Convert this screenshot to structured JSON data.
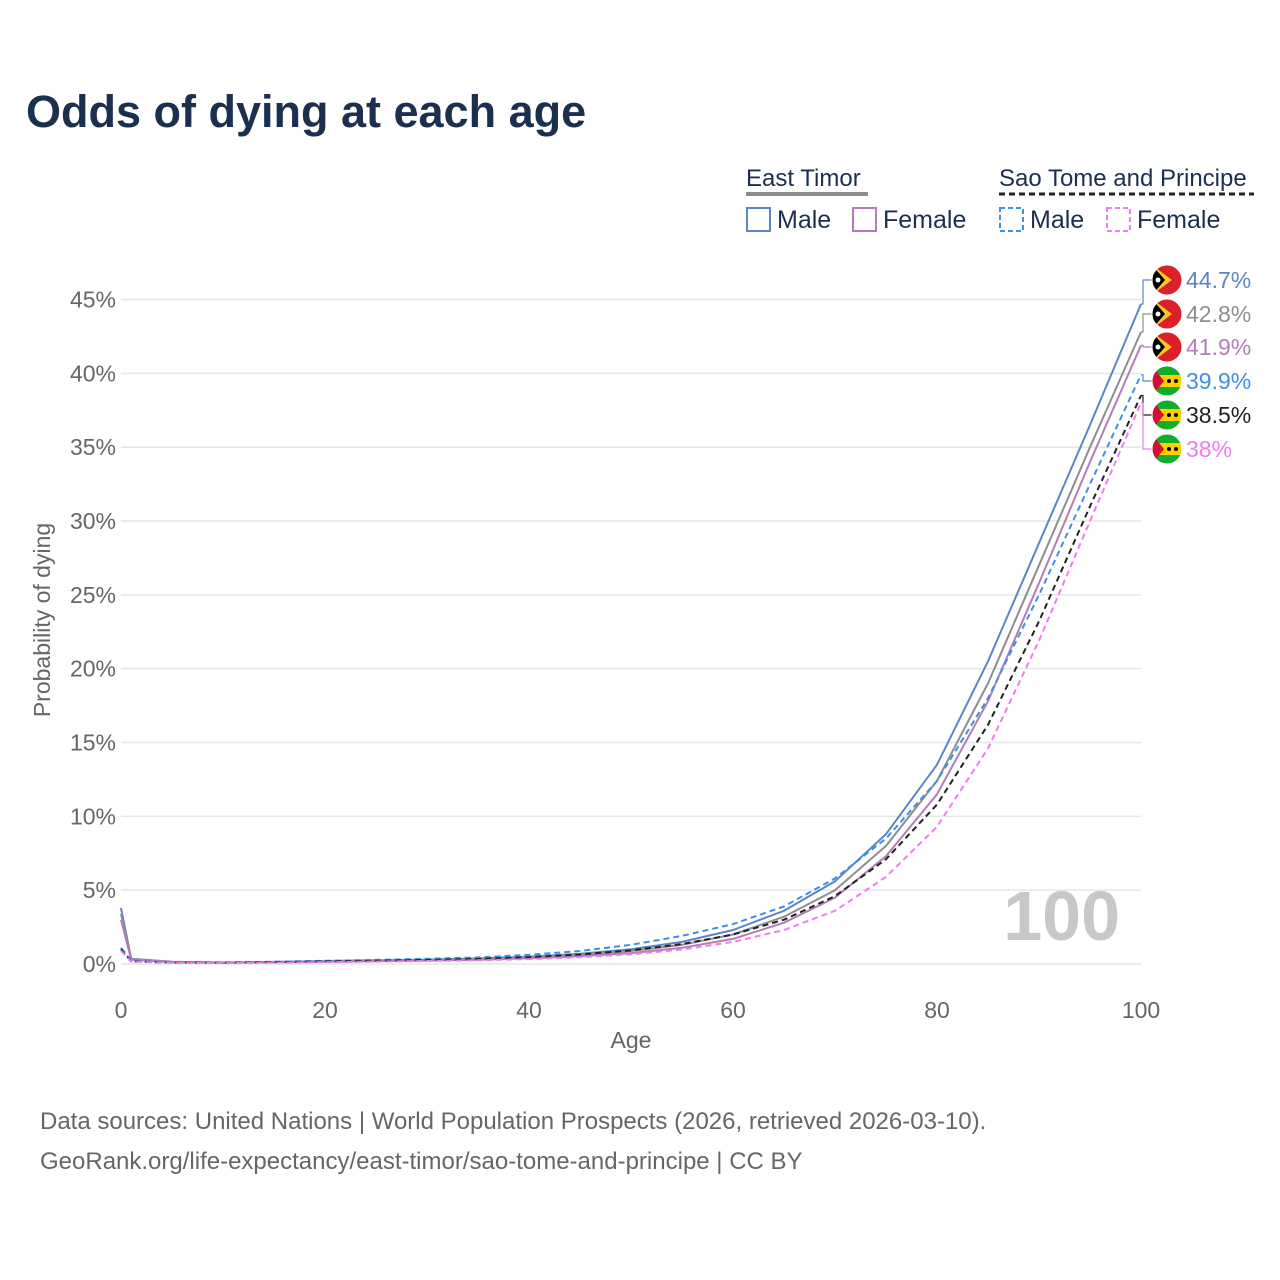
{
  "title": "Odds of dying at each age",
  "footer": {
    "line1": "Data sources: United Nations | World Population Prospects (2026, retrieved 2026-03-10).",
    "line2": "GeoRank.org/life-expectancy/east-timor/sao-tome-and-principe | CC BY"
  },
  "colors": {
    "east_timor_male": "#5b86c5",
    "east_timor_female": "#b47cb8",
    "east_timor_group": "#8e8e8e",
    "stp_male": "#3d8fe8",
    "stp_female": "#f07cef",
    "stp_group": "#222222"
  },
  "legend": {
    "groups": [
      {
        "label": "East Timor",
        "style": "solid",
        "entries": [
          "Male",
          "Female"
        ]
      },
      {
        "label": "Sao Tome and Principe",
        "style": "dashed",
        "entries": [
          "Male",
          "Female"
        ]
      }
    ]
  },
  "chart_data": {
    "type": "line",
    "title": "Odds of dying at each age",
    "xlabel": "Age",
    "ylabel": "Probability of dying",
    "xlim": [
      0,
      100
    ],
    "ylim": [
      0,
      47
    ],
    "xticks": [
      0,
      20,
      40,
      60,
      80,
      100
    ],
    "yticks": [
      0,
      5,
      10,
      15,
      20,
      25,
      30,
      35,
      40,
      45
    ],
    "ytick_suffix": "%",
    "grid": true,
    "year_label": "100",
    "x": [
      0,
      1,
      5,
      10,
      15,
      20,
      25,
      30,
      35,
      40,
      45,
      50,
      55,
      60,
      65,
      70,
      75,
      80,
      85,
      90,
      95,
      100
    ],
    "series": [
      {
        "name": "East Timor Male",
        "country": "East Timor",
        "sex": "Male",
        "style": "solid",
        "color_key": "east_timor_male",
        "values": [
          3.8,
          0.35,
          0.15,
          0.1,
          0.14,
          0.2,
          0.25,
          0.3,
          0.38,
          0.5,
          0.7,
          1.0,
          1.5,
          2.3,
          3.6,
          5.6,
          8.8,
          13.5,
          20.5,
          28.5,
          36.5,
          44.7
        ],
        "end_label": "44.7%"
      },
      {
        "name": "East Timor (both sexes)",
        "country": "East Timor",
        "sex": "Both",
        "style": "solid",
        "color_key": "east_timor_group",
        "values": [
          3.4,
          0.33,
          0.14,
          0.09,
          0.13,
          0.18,
          0.22,
          0.27,
          0.34,
          0.45,
          0.62,
          0.88,
          1.3,
          2.0,
          3.2,
          5.0,
          8.0,
          12.4,
          19.0,
          27.0,
          35.0,
          42.8
        ],
        "end_label": "42.8%"
      },
      {
        "name": "East Timor Female",
        "country": "East Timor",
        "sex": "Female",
        "style": "solid",
        "color_key": "east_timor_female",
        "values": [
          3.0,
          0.3,
          0.12,
          0.08,
          0.11,
          0.15,
          0.19,
          0.23,
          0.29,
          0.38,
          0.52,
          0.74,
          1.1,
          1.7,
          2.8,
          4.5,
          7.3,
          11.5,
          17.8,
          25.8,
          34.0,
          41.9
        ],
        "end_label": "41.9%"
      },
      {
        "name": "Sao Tome and Principe Male",
        "country": "Sao Tome and Principe",
        "sex": "Male",
        "style": "dashed",
        "color_key": "stp_male",
        "values": [
          1.1,
          0.2,
          0.1,
          0.1,
          0.15,
          0.22,
          0.28,
          0.35,
          0.45,
          0.62,
          0.88,
          1.3,
          1.9,
          2.7,
          3.9,
          5.8,
          8.5,
          12.4,
          18.0,
          25.0,
          32.5,
          39.9
        ],
        "end_label": "39.9%"
      },
      {
        "name": "Sao Tome and Principe (both sexes)",
        "country": "Sao Tome and Principe",
        "sex": "Both",
        "style": "dashed",
        "color_key": "stp_group",
        "values": [
          1.0,
          0.18,
          0.09,
          0.08,
          0.12,
          0.17,
          0.22,
          0.27,
          0.34,
          0.46,
          0.64,
          0.92,
          1.35,
          2.0,
          3.0,
          4.6,
          7.1,
          10.8,
          16.2,
          23.2,
          31.0,
          38.5
        ],
        "end_label": "38.5%"
      },
      {
        "name": "Sao Tome and Principe Female",
        "country": "Sao Tome and Principe",
        "sex": "Female",
        "style": "dashed",
        "color_key": "stp_female",
        "values": [
          0.9,
          0.16,
          0.08,
          0.06,
          0.09,
          0.12,
          0.16,
          0.2,
          0.25,
          0.33,
          0.46,
          0.66,
          0.98,
          1.5,
          2.3,
          3.6,
          5.9,
          9.3,
          14.6,
          21.9,
          30.0,
          38.0
        ],
        "end_label": "38%"
      }
    ]
  }
}
